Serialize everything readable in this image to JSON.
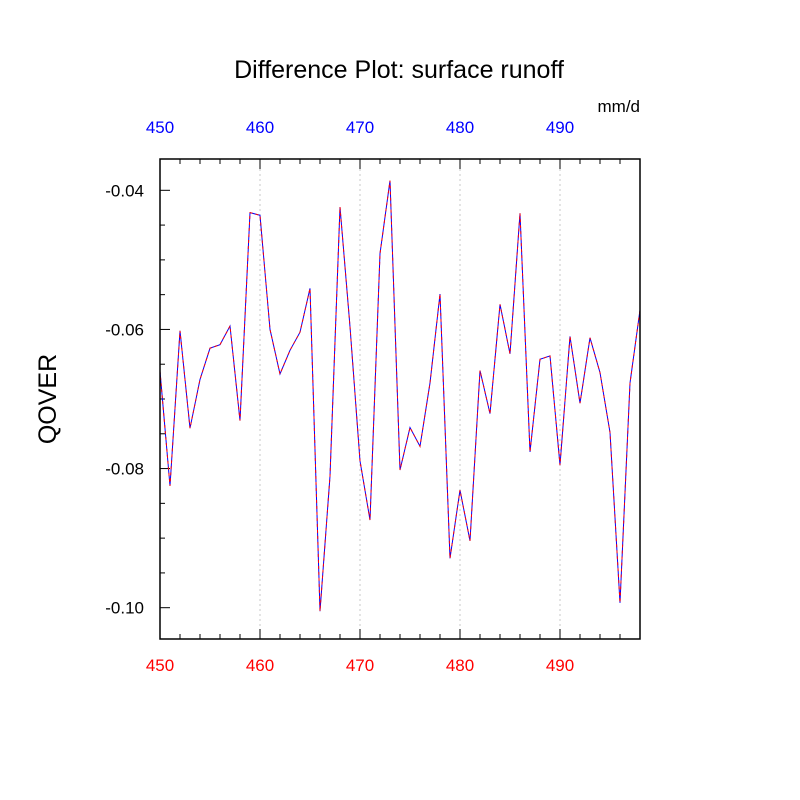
{
  "chart_data": {
    "type": "line",
    "title": "Difference Plot: surface runoff",
    "units_label": "mm/d",
    "ylabel": "QOVER",
    "xlim": [
      450,
      498
    ],
    "ylim": [
      -0.1045,
      -0.0355
    ],
    "x_ticks": [
      450,
      460,
      470,
      480,
      490
    ],
    "x_tick_labels": [
      "450",
      "460",
      "470",
      "480",
      "490"
    ],
    "y_ticks": [
      -0.04,
      -0.06,
      -0.08,
      -0.1
    ],
    "y_tick_labels": [
      "-0.04",
      "-0.06",
      "-0.08",
      "-0.10"
    ],
    "grid": "vertical dotted at major x ticks",
    "colors": {
      "bottom_axis_labels": "#ff0000",
      "top_axis_labels": "#0000ff",
      "series_solid": "#0000ff",
      "series_dashed": "#ff0000"
    },
    "series": [
      {
        "style": "overlay blue solid + red dashed",
        "x": [
          450,
          451,
          452,
          453,
          454,
          455,
          456,
          457,
          458,
          459,
          460,
          461,
          462,
          463,
          464,
          465,
          466,
          467,
          468,
          469,
          470,
          471,
          472,
          473,
          474,
          475,
          476,
          477,
          478,
          479,
          480,
          481,
          482,
          483,
          484,
          485,
          486,
          487,
          488,
          489,
          490,
          491,
          492,
          493,
          494,
          495,
          496,
          497,
          498
        ],
        "y": [
          -0.066,
          -0.0825,
          -0.0602,
          -0.0742,
          -0.0672,
          -0.0627,
          -0.0622,
          -0.0595,
          -0.0731,
          -0.0432,
          -0.0436,
          -0.06,
          -0.0664,
          -0.063,
          -0.0604,
          -0.0541,
          -0.1005,
          -0.0811,
          -0.0424,
          -0.0596,
          -0.0789,
          -0.0874,
          -0.0491,
          -0.0386,
          -0.0802,
          -0.0741,
          -0.0768,
          -0.0677,
          -0.0549,
          -0.0929,
          -0.0831,
          -0.0904,
          -0.0659,
          -0.0721,
          -0.0564,
          -0.0635,
          -0.0433,
          -0.0776,
          -0.0643,
          -0.0638,
          -0.0795,
          -0.061,
          -0.0706,
          -0.0612,
          -0.0662,
          -0.0748,
          -0.0993,
          -0.0677,
          -0.0572
        ]
      }
    ]
  }
}
